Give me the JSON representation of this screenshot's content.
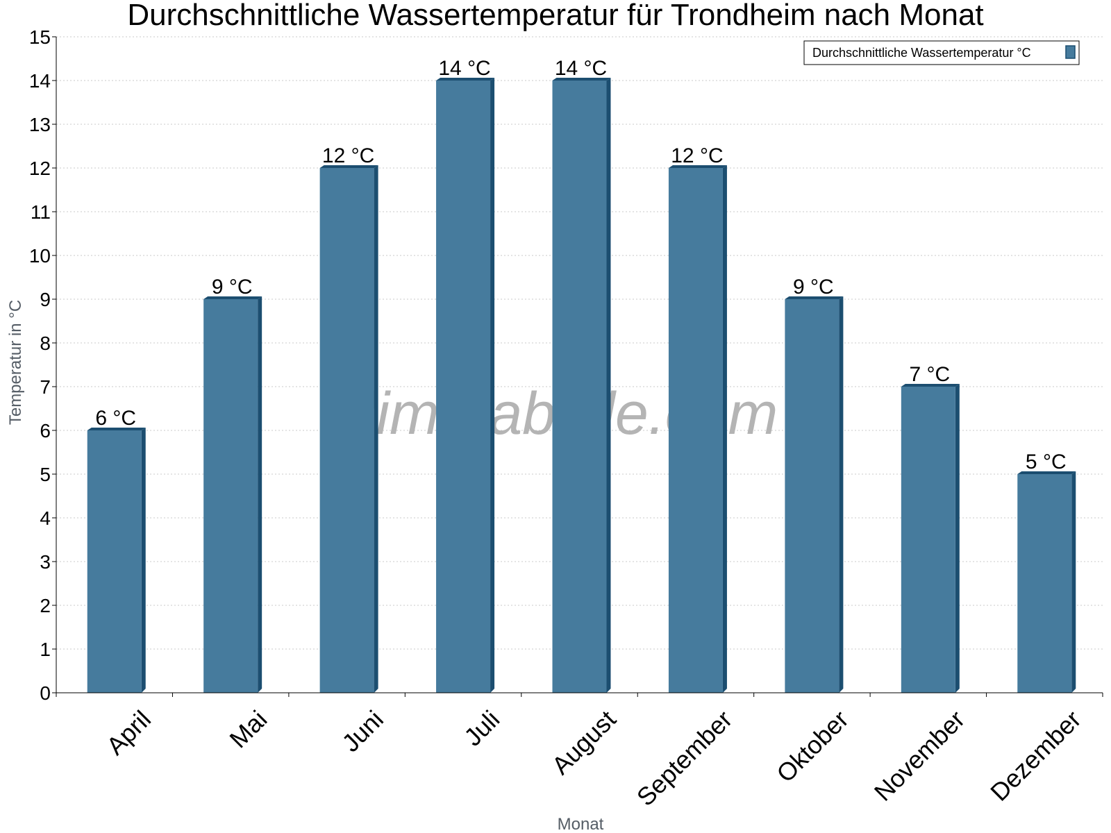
{
  "chart_data": {
    "type": "bar",
    "title": "Durchschnittliche Wassertemperatur für Trondheim nach Monat",
    "xlabel": "Monat",
    "ylabel": "Temperatur in °C",
    "categories": [
      "April",
      "Mai",
      "Juni",
      "Juli",
      "August",
      "September",
      "Oktober",
      "November",
      "Dezember"
    ],
    "series": [
      {
        "name": "Durchschnittliche Wassertemperatur °C",
        "values": [
          6,
          9,
          12,
          14,
          14,
          12,
          9,
          7,
          5
        ],
        "color": "#467b9d",
        "edge_color": "#1c4e70"
      }
    ],
    "data_labels": [
      "6 °C",
      "9 °C",
      "12 °C",
      "14 °C",
      "14 °C",
      "12 °C",
      "9 °C",
      "7 °C",
      "5 °C"
    ],
    "ylim": [
      0,
      15
    ],
    "yticks": [
      0,
      1,
      2,
      3,
      4,
      5,
      6,
      7,
      8,
      9,
      10,
      11,
      12,
      13,
      14,
      15
    ],
    "grid": true,
    "legend_position": "top-right"
  },
  "watermark": "klimatabelle.com"
}
